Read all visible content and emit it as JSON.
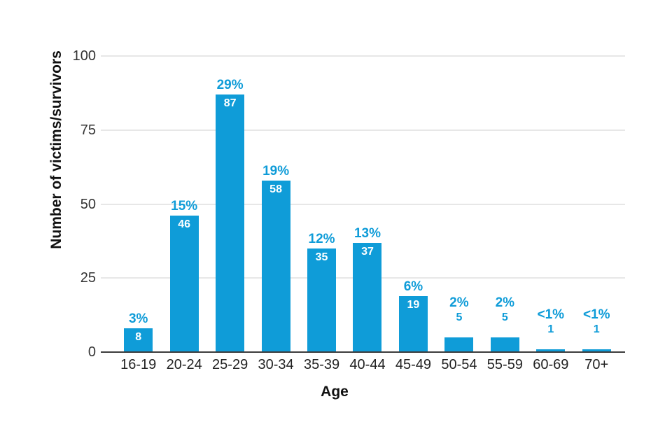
{
  "chart_data": {
    "type": "bar",
    "xlabel": "Age",
    "ylabel": "Number of victims/survivors",
    "categories": [
      "16-19",
      "20-24",
      "25-29",
      "30-34",
      "35-39",
      "40-44",
      "45-49",
      "50-54",
      "55-59",
      "60-69",
      "70+"
    ],
    "values": [
      8,
      46,
      87,
      58,
      35,
      37,
      19,
      5,
      5,
      1,
      1
    ],
    "percent_labels": [
      "3%",
      "15%",
      "29%",
      "19%",
      "12%",
      "13%",
      "6%",
      "2%",
      "2%",
      "<1%",
      "<1%"
    ],
    "count_labels": [
      "8",
      "46",
      "87",
      "58",
      "35",
      "37",
      "19",
      "5",
      "5",
      "1",
      "1"
    ],
    "y_ticks": [
      0,
      25,
      50,
      75,
      100
    ],
    "y_tick_labels": [
      "0",
      "25",
      "50",
      "75",
      "100"
    ],
    "ylim": [
      0,
      100
    ],
    "grid": true,
    "legend": "none",
    "bar_color": "#0f9cd8",
    "outside_label_color": "#0f9cd8",
    "inside_label_color": "#ffffff",
    "gridline_color": "#e7e7e7",
    "axis_line_color": "#3c3c3c"
  }
}
